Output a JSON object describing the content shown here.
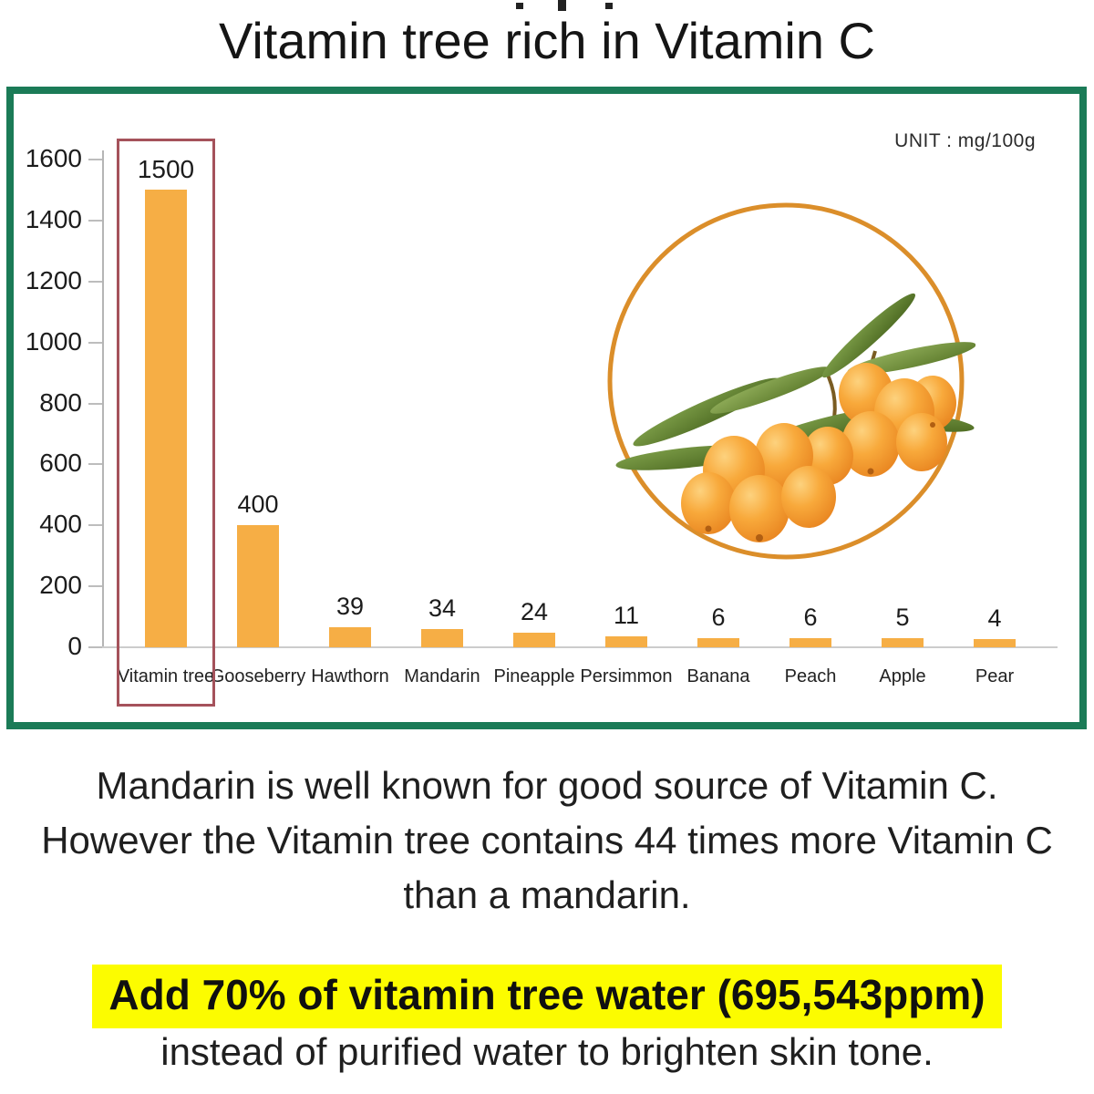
{
  "title": "Vitamin tree rich in Vitamin C",
  "chart": {
    "unit_label": "UNIT : mg/100g",
    "border_color": "#1B7B57",
    "bar_color": "#F6AE45",
    "highlight_box_color": "#A5525B",
    "axis_color": "#B5B5B5",
    "circle_color": "#DB8E2A",
    "value_label_color": "#1C1C1C"
  },
  "chart_data": {
    "type": "bar",
    "title": "Vitamin tree rich in Vitamin C",
    "unit": "mg/100g",
    "categories": [
      "Vitamin tree",
      "Gooseberry",
      "Hawthorn",
      "Mandarin",
      "Pineapple",
      "Persimmon",
      "Banana",
      "Peach",
      "Apple",
      "Pear"
    ],
    "values": [
      1500,
      400,
      39,
      34,
      24,
      11,
      6,
      6,
      5,
      4
    ],
    "value_labels": [
      "1500",
      "400",
      "39",
      "34",
      "24",
      "11",
      "6",
      "6",
      "5",
      "4"
    ],
    "ylim": [
      0,
      1600
    ],
    "yticks": [
      0,
      200,
      400,
      600,
      800,
      1000,
      1200,
      1400,
      1600
    ],
    "grid": false,
    "legend": false,
    "bar_color": "#F6AE45",
    "highlighted_category": "Vitamin tree"
  },
  "illustration": {
    "name": "sea-buckthorn-berries-in-circle"
  },
  "paragraph": {
    "line1": "Mandarin is well known for good source of Vitamin C.",
    "line2": "However the Vitamin tree contains 44 times more Vitamin C",
    "line3": "than a mandarin."
  },
  "footer": {
    "highlight": "Add 70% of vitamin tree water (695,543ppm)",
    "line2": "instead of purified water to brighten skin tone.",
    "highlight_color": "#FCFC00"
  }
}
